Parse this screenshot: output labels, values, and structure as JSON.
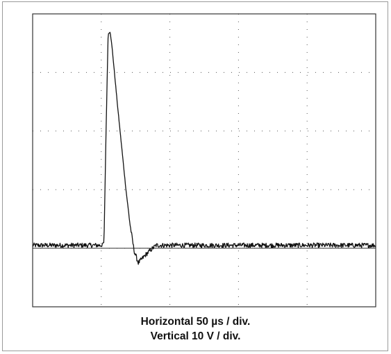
{
  "caption": {
    "line1": "Horizontal 50 µs / div.",
    "line2": "Vertical 10 V / div."
  },
  "colors": {
    "trace": "#111111",
    "grid": "#555555",
    "border": "#333333"
  },
  "chart_data": {
    "type": "line",
    "title": "",
    "xlabel": "Horizontal 50 µs / div.",
    "ylabel": "Vertical 10 V / div.",
    "x_unit": "µs",
    "y_unit": "V",
    "xlim": [
      0,
      250
    ],
    "ylim": [
      -10,
      40
    ],
    "x_divisions": 5,
    "y_divisions": 5,
    "grid": "dotted",
    "zero_line_y": 0,
    "noise_amplitude": 0.4,
    "series": [
      {
        "points": [
          [
            0,
            0.5
          ],
          [
            50,
            0.5
          ],
          [
            52,
            1.0
          ],
          [
            53.5,
            20
          ],
          [
            55,
            36.5
          ],
          [
            56.5,
            37
          ],
          [
            58,
            34
          ],
          [
            60,
            29
          ],
          [
            62,
            24
          ],
          [
            65,
            17
          ],
          [
            68,
            10
          ],
          [
            71,
            4
          ],
          [
            74,
            -0.5
          ],
          [
            77,
            -2.5
          ],
          [
            79,
            -2.0
          ],
          [
            82,
            -1.2
          ],
          [
            86,
            -0.3
          ],
          [
            90,
            0.5
          ],
          [
            250,
            0.5
          ]
        ]
      }
    ]
  }
}
